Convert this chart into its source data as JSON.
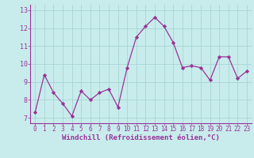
{
  "x": [
    0,
    1,
    2,
    3,
    4,
    5,
    6,
    7,
    8,
    9,
    10,
    11,
    12,
    13,
    14,
    15,
    16,
    17,
    18,
    19,
    20,
    21,
    22,
    23
  ],
  "y": [
    7.3,
    9.4,
    8.4,
    7.8,
    7.1,
    8.5,
    8.0,
    8.4,
    8.6,
    7.6,
    9.8,
    11.5,
    12.1,
    12.6,
    12.1,
    11.2,
    9.8,
    9.9,
    9.8,
    9.1,
    10.4,
    10.4,
    9.2,
    9.6
  ],
  "line_color": "#993399",
  "marker": "D",
  "marker_size": 2.2,
  "bg_color": "#c8ecec",
  "grid_color": "#aad4d4",
  "xlabel": "Windchill (Refroidissement éolien,°C)",
  "xlabel_color": "#993399",
  "tick_color": "#993399",
  "spine_color": "#993399",
  "xlim": [
    -0.5,
    23.5
  ],
  "ylim": [
    6.7,
    13.3
  ],
  "yticks": [
    7,
    8,
    9,
    10,
    11,
    12,
    13
  ],
  "xticks": [
    0,
    1,
    2,
    3,
    4,
    5,
    6,
    7,
    8,
    9,
    10,
    11,
    12,
    13,
    14,
    15,
    16,
    17,
    18,
    19,
    20,
    21,
    22,
    23
  ],
  "tick_fontsize": 5.5,
  "xlabel_fontsize": 6.5,
  "linewidth": 0.9
}
